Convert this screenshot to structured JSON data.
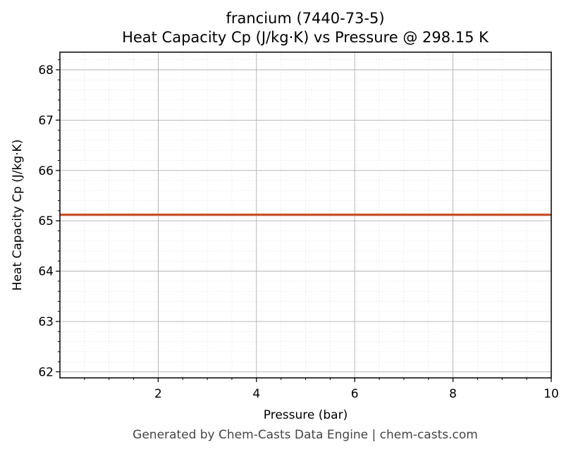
{
  "chart_data": {
    "type": "line",
    "title": "francium (7440-73-5)",
    "subtitle": "Heat Capacity Cp (J/kg·K) vs Pressure @ 298.15 K",
    "xlabel": "Pressure (bar)",
    "ylabel": "Heat Capacity Cp (J/kg·K)",
    "xlim": [
      0.0,
      10
    ],
    "ylim": [
      61.88,
      68.35
    ],
    "xticks": [
      2,
      4,
      6,
      8,
      10
    ],
    "yticks": [
      62,
      63,
      64,
      65,
      66,
      67,
      68
    ],
    "grid": true,
    "minor_grid": true,
    "series": [
      {
        "color": "#c8502a",
        "x": [
          0.0,
          10
        ],
        "y": [
          65.12,
          65.12
        ]
      }
    ]
  },
  "footer": "Generated by Chem-Casts Data Engine | chem-casts.com"
}
